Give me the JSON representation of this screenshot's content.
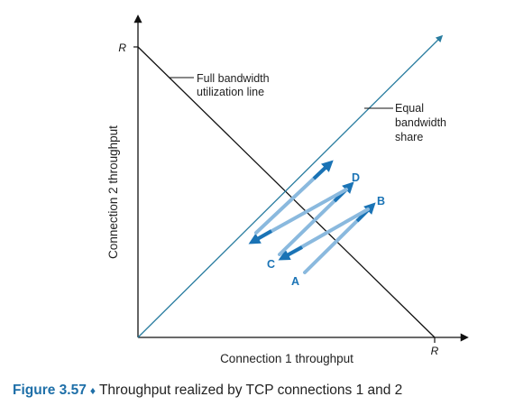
{
  "axes": {
    "x_label": "Connection 1 throughput",
    "y_label": "Connection 2 throughput",
    "x_max_label": "R",
    "y_max_label": "R"
  },
  "lines": {
    "full_bandwidth": "Full bandwidth utilization line",
    "full_bandwidth_line1": "Full bandwidth",
    "full_bandwidth_line2": "utilization line",
    "equal_share": "Equal bandwidth share",
    "equal_share_line1": "Equal",
    "equal_share_line2": "bandwidth",
    "equal_share_line3": "share"
  },
  "points": [
    "A",
    "B",
    "C",
    "D"
  ],
  "caption": {
    "figure_label": "Figure 3.57",
    "separator": "♦",
    "text": "Throughput realized by TCP connections 1 and 2"
  },
  "colors": {
    "axis": "#111111",
    "equal_line": "#2a7da0",
    "arrow_dark": "#1a73b5",
    "arrow_light": "#8ab9de",
    "caption_accent": "#1e6fa8"
  }
}
